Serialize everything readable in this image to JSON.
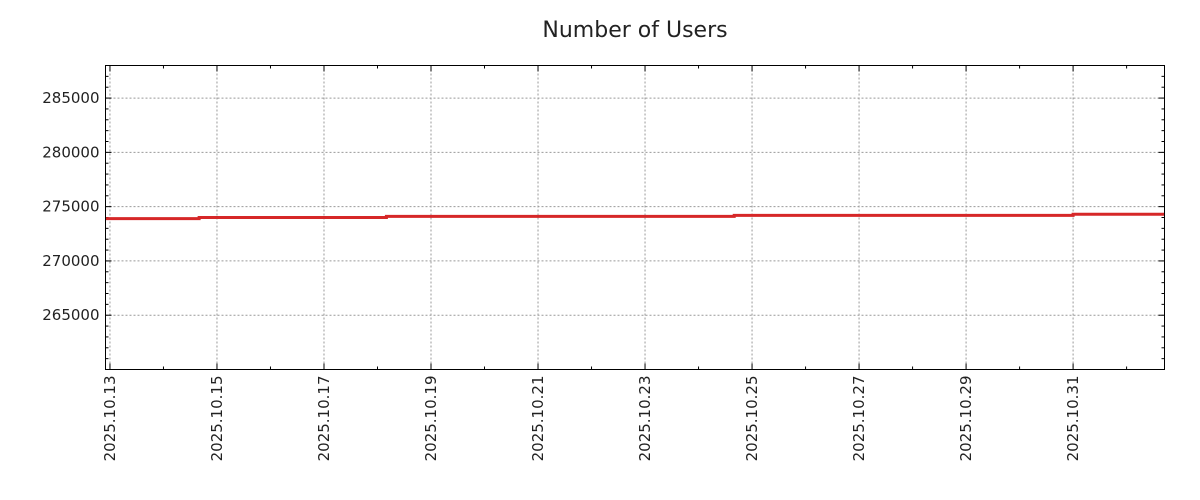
{
  "chart_data": {
    "type": "line",
    "title": "Number of Users",
    "xlabel": "",
    "ylabel": "",
    "x_range": [
      "2025-10-12 22:00",
      "2025-11-01 17:00"
    ],
    "ylim": [
      260000,
      288000
    ],
    "x_ticks": [
      "2025.10.13",
      "2025.10.15",
      "2025.10.17",
      "2025.10.19",
      "2025.10.21",
      "2025.10.23",
      "2025.10.25",
      "2025.10.27",
      "2025.10.29",
      "2025.10.31"
    ],
    "y_ticks": [
      265000,
      270000,
      275000,
      280000,
      285000
    ],
    "grid": true,
    "legend": "none",
    "series": [
      {
        "color": "#d62728",
        "points": [
          {
            "x": "2025-10-12 22:00",
            "y": 273900
          },
          {
            "x": "2025-10-14 16:00",
            "y": 273900
          },
          {
            "x": "2025-10-14 16:00",
            "y": 274000
          },
          {
            "x": "2025-10-18 04:00",
            "y": 274000
          },
          {
            "x": "2025-10-18 04:00",
            "y": 274100
          },
          {
            "x": "2025-10-24 16:00",
            "y": 274100
          },
          {
            "x": "2025-10-24 16:00",
            "y": 274200
          },
          {
            "x": "2025-10-31 00:00",
            "y": 274200
          },
          {
            "x": "2025-10-31 00:00",
            "y": 274300
          },
          {
            "x": "2025-11-01 17:00",
            "y": 274300
          }
        ]
      }
    ]
  }
}
